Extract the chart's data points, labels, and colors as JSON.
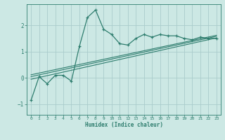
{
  "title": "",
  "xlabel": "Humidex (Indice chaleur)",
  "ylabel": "",
  "bg_color": "#cce8e4",
  "line_color": "#2e7d6e",
  "grid_color": "#aacccc",
  "xlim": [
    -0.5,
    23.5
  ],
  "ylim": [
    -1.4,
    2.8
  ],
  "xticks": [
    0,
    1,
    2,
    3,
    4,
    5,
    6,
    7,
    8,
    9,
    10,
    11,
    12,
    13,
    14,
    15,
    16,
    17,
    18,
    19,
    20,
    21,
    22,
    23
  ],
  "yticks": [
    -1,
    0,
    1,
    2
  ],
  "main_series_x": [
    0,
    1,
    2,
    3,
    4,
    5,
    6,
    7,
    8,
    9,
    10,
    11,
    12,
    13,
    14,
    15,
    16,
    17,
    18,
    19,
    20,
    21,
    22,
    23
  ],
  "main_series_y": [
    -0.85,
    0.05,
    -0.22,
    0.1,
    0.1,
    -0.12,
    1.2,
    2.3,
    2.58,
    1.85,
    1.65,
    1.3,
    1.25,
    1.5,
    1.65,
    1.55,
    1.65,
    1.6,
    1.6,
    1.5,
    1.45,
    1.55,
    1.5,
    1.5
  ],
  "line1_x": [
    0,
    23
  ],
  "line1_y": [
    -0.05,
    1.52
  ],
  "line2_x": [
    0,
    23
  ],
  "line2_y": [
    0.05,
    1.58
  ],
  "line3_x": [
    0,
    23
  ],
  "line3_y": [
    0.12,
    1.62
  ]
}
